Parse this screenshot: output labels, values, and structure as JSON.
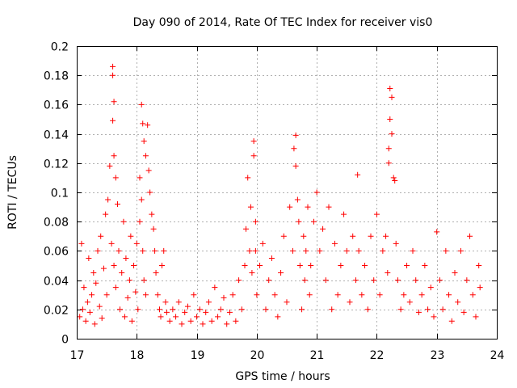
{
  "chart_data": {
    "type": "scatter",
    "title": "Day 090 of 2014, Rate Of TEC Index for receiver vis0",
    "xlabel": "GPS time / hours",
    "ylabel": "ROTI / TECUs",
    "xlim": [
      17,
      24
    ],
    "ylim": [
      0,
      0.2
    ],
    "x_ticks": [
      17,
      18,
      19,
      20,
      21,
      22,
      23,
      24
    ],
    "x_tick_labels": [
      "17",
      "18",
      "19",
      "20",
      "21",
      "22",
      "23",
      "24"
    ],
    "y_ticks": [
      0,
      0.02,
      0.04,
      0.06,
      0.08,
      0.1,
      0.12,
      0.14,
      0.16,
      0.18,
      0.2
    ],
    "y_tick_labels": [
      "0",
      "0.02",
      "0.04",
      "0.06",
      "0.08",
      "0.1",
      "0.12",
      "0.14",
      "0.16",
      "0.18",
      "0.2"
    ],
    "grid": true,
    "marker": "+",
    "series": [
      {
        "name": "ROTI",
        "color": "#ff0000",
        "x": [
          17.05,
          17.08,
          17.1,
          17.12,
          17.15,
          17.18,
          17.2,
          17.22,
          17.25,
          17.28,
          17.3,
          17.32,
          17.35,
          17.38,
          17.4,
          17.42,
          17.45,
          17.48,
          17.5,
          17.52,
          17.55,
          17.58,
          17.6,
          17.6,
          17.6,
          17.62,
          17.62,
          17.62,
          17.65,
          17.65,
          17.68,
          17.7,
          17.72,
          17.75,
          17.78,
          17.8,
          17.82,
          17.85,
          17.88,
          17.9,
          17.92,
          17.95,
          17.98,
          18.0,
          18.02,
          18.05,
          18.05,
          18.08,
          18.08,
          18.1,
          18.1,
          18.12,
          18.12,
          18.15,
          18.15,
          18.18,
          18.2,
          18.22,
          18.25,
          18.28,
          18.3,
          18.32,
          18.35,
          18.38,
          18.4,
          18.42,
          18.45,
          18.48,
          18.5,
          18.55,
          18.6,
          18.65,
          18.7,
          18.75,
          18.8,
          18.85,
          18.9,
          18.95,
          19.0,
          19.05,
          19.1,
          19.15,
          19.2,
          19.25,
          19.3,
          19.35,
          19.4,
          19.45,
          19.5,
          19.55,
          19.6,
          19.65,
          19.7,
          19.75,
          19.8,
          19.82,
          19.85,
          19.88,
          19.9,
          19.92,
          19.95,
          19.95,
          19.98,
          19.98,
          20.0,
          20.05,
          20.1,
          20.15,
          20.2,
          20.25,
          20.3,
          20.35,
          20.4,
          20.45,
          20.5,
          20.55,
          20.6,
          20.62,
          20.65,
          20.65,
          20.68,
          20.7,
          20.72,
          20.75,
          20.78,
          20.8,
          20.82,
          20.85,
          20.88,
          20.9,
          20.95,
          21.0,
          21.05,
          21.1,
          21.15,
          21.2,
          21.25,
          21.3,
          21.35,
          21.4,
          21.45,
          21.5,
          21.55,
          21.6,
          21.65,
          21.68,
          21.7,
          21.75,
          21.8,
          21.85,
          21.9,
          21.95,
          22.0,
          22.05,
          22.1,
          22.15,
          22.18,
          22.2,
          22.2,
          22.22,
          22.22,
          22.25,
          22.25,
          22.28,
          22.3,
          22.32,
          22.35,
          22.4,
          22.45,
          22.5,
          22.55,
          22.6,
          22.65,
          22.7,
          22.75,
          22.8,
          22.85,
          22.9,
          22.95,
          23.0,
          23.05,
          23.1,
          23.15,
          23.2,
          23.25,
          23.3,
          23.35,
          23.4,
          23.45,
          23.5,
          23.55,
          23.6,
          23.65,
          23.7,
          23.72
        ],
        "y": [
          0.015,
          0.065,
          0.02,
          0.035,
          0.012,
          0.025,
          0.055,
          0.018,
          0.03,
          0.045,
          0.01,
          0.038,
          0.06,
          0.022,
          0.07,
          0.014,
          0.048,
          0.085,
          0.03,
          0.095,
          0.118,
          0.065,
          0.186,
          0.18,
          0.149,
          0.162,
          0.125,
          0.05,
          0.11,
          0.035,
          0.092,
          0.06,
          0.02,
          0.045,
          0.08,
          0.015,
          0.055,
          0.028,
          0.04,
          0.07,
          0.012,
          0.05,
          0.032,
          0.065,
          0.02,
          0.11,
          0.08,
          0.16,
          0.095,
          0.147,
          0.06,
          0.135,
          0.04,
          0.125,
          0.03,
          0.146,
          0.115,
          0.1,
          0.085,
          0.075,
          0.06,
          0.045,
          0.03,
          0.02,
          0.015,
          0.05,
          0.06,
          0.025,
          0.018,
          0.012,
          0.02,
          0.015,
          0.025,
          0.01,
          0.018,
          0.022,
          0.012,
          0.03,
          0.015,
          0.02,
          0.01,
          0.018,
          0.025,
          0.012,
          0.035,
          0.015,
          0.02,
          0.028,
          0.01,
          0.018,
          0.03,
          0.012,
          0.04,
          0.02,
          0.05,
          0.075,
          0.11,
          0.06,
          0.09,
          0.045,
          0.135,
          0.125,
          0.08,
          0.06,
          0.03,
          0.05,
          0.065,
          0.02,
          0.04,
          0.055,
          0.03,
          0.015,
          0.045,
          0.07,
          0.025,
          0.09,
          0.06,
          0.13,
          0.118,
          0.139,
          0.095,
          0.08,
          0.05,
          0.02,
          0.07,
          0.04,
          0.06,
          0.09,
          0.03,
          0.05,
          0.08,
          0.1,
          0.06,
          0.075,
          0.04,
          0.09,
          0.02,
          0.065,
          0.03,
          0.05,
          0.085,
          0.06,
          0.025,
          0.07,
          0.04,
          0.112,
          0.06,
          0.03,
          0.05,
          0.02,
          0.07,
          0.04,
          0.085,
          0.03,
          0.06,
          0.07,
          0.045,
          0.13,
          0.12,
          0.15,
          0.171,
          0.165,
          0.14,
          0.11,
          0.108,
          0.065,
          0.04,
          0.02,
          0.03,
          0.05,
          0.025,
          0.06,
          0.04,
          0.018,
          0.03,
          0.05,
          0.02,
          0.035,
          0.015,
          0.073,
          0.04,
          0.02,
          0.06,
          0.03,
          0.012,
          0.045,
          0.025,
          0.06,
          0.018,
          0.04,
          0.07,
          0.03,
          0.015,
          0.05,
          0.035
        ]
      }
    ]
  }
}
